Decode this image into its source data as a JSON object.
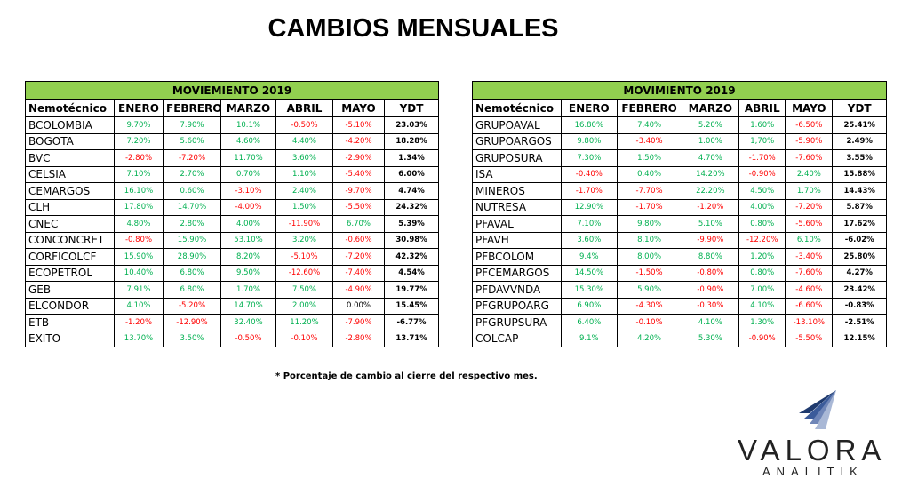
{
  "title": "CAMBIOS MENSUALES",
  "footnote": "* Porcentaje de cambio al cierre del respectivo mes.",
  "logo": {
    "word": "VALORA",
    "sub": "ANALITIK"
  },
  "colors": {
    "header_green": "#92d050",
    "positive": "#00b050",
    "negative": "#ff0000"
  },
  "columns": [
    "Nemotécnico",
    "ENERO",
    "FEBRERO",
    "MARZO",
    "ABRIL",
    "MAYO",
    "YDT"
  ],
  "left_table": {
    "caption": "MOVIEMIENTO 2019",
    "rows": [
      [
        "BCOLOMBIA",
        "9.70%",
        "7.90%",
        "10.1%",
        "-0.50%",
        "-5.10%",
        "23.03%"
      ],
      [
        "BOGOTA",
        "7.20%",
        "5.60%",
        "4.60%",
        "4.40%",
        "-4.20%",
        "18.28%"
      ],
      [
        "BVC",
        "-2.80%",
        "-7.20%",
        "11.70%",
        "3.60%",
        "-2.90%",
        "1.34%"
      ],
      [
        "CELSIA",
        "7.10%",
        "2.70%",
        "0.70%",
        "1.10%",
        "-5.40%",
        "6.00%"
      ],
      [
        "CEMARGOS",
        "16.10%",
        "0.60%",
        "-3.10%",
        "2.40%",
        "-9.70%",
        "4.74%"
      ],
      [
        "CLH",
        "17.80%",
        "14.70%",
        "-4.00%",
        "1.50%",
        "-5.50%",
        "24.32%"
      ],
      [
        "CNEC",
        "4.80%",
        "2.80%",
        "4.00%",
        "-11.90%",
        "6.70%",
        "5.39%"
      ],
      [
        "CONCONCRET",
        "-0.80%",
        "15.90%",
        "53.10%",
        "3.20%",
        "-0.60%",
        "30.98%"
      ],
      [
        "CORFICOLCF",
        "15.90%",
        "28.90%",
        "8.20%",
        "-5.10%",
        "-7.20%",
        "42.32%"
      ],
      [
        "ECOPETROL",
        "10.40%",
        "6.80%",
        "9.50%",
        "-12.60%",
        "-7.40%",
        "4.54%"
      ],
      [
        "GEB",
        "7.91%",
        "6.80%",
        "1.70%",
        "7.50%",
        "-4.90%",
        "19.77%"
      ],
      [
        "ELCONDOR",
        "4.10%",
        "-5.20%",
        "14.70%",
        "2.00%",
        "0.00%",
        "15.45%"
      ],
      [
        "ETB",
        "-1.20%",
        "-12.90%",
        "32.40%",
        "11.20%",
        "-7.90%",
        "-6.77%"
      ],
      [
        "EXITO",
        "13.70%",
        "3.50%",
        "-0.50%",
        "-0.10%",
        "-2.80%",
        "13.71%"
      ]
    ]
  },
  "right_table": {
    "caption": "MOVIMIENTO  2019",
    "rows": [
      [
        "GRUPOAVAL",
        "16.80%",
        "7.40%",
        "5.20%",
        "1.60%",
        "-6.50%",
        "25.41%"
      ],
      [
        "GRUPOARGOS",
        "9.80%",
        "-3.40%",
        "1.00%",
        "1,70%",
        "-5.90%",
        "2.49%"
      ],
      [
        "GRUPOSURA",
        "7.30%",
        "1.50%",
        "4.70%",
        "-1.70%",
        "-7.60%",
        "3.55%"
      ],
      [
        "ISA",
        "-0.40%",
        "0.40%",
        "14.20%",
        "-0.90%",
        "2.40%",
        "15.88%"
      ],
      [
        "MINEROS",
        "-1.70%",
        "-7.70%",
        "22.20%",
        "4.50%",
        "1.70%",
        "14.43%"
      ],
      [
        "NUTRESA",
        "12.90%",
        "-1.70%",
        "-1.20%",
        "4.00%",
        "-7.20%",
        "5.87%"
      ],
      [
        "PFAVAL",
        "7.10%",
        "9.80%",
        "5.10%",
        "0.80%",
        "-5.60%",
        "17.62%"
      ],
      [
        "PFAVH",
        "3.60%",
        "8.10%",
        "-9.90%",
        "-12.20%",
        "6.10%",
        "-6.02%"
      ],
      [
        "PFBCOLOM",
        "9.4%",
        "8.00%",
        "8.80%",
        "1.20%",
        "-3.40%",
        "25.80%"
      ],
      [
        "PFCEMARGOS",
        "14.50%",
        "-1.50%",
        "-0.80%",
        "0.80%",
        "-7.60%",
        "4.27%"
      ],
      [
        "PFDAVVNDA",
        "15.30%",
        "5.90%",
        "-0.90%",
        "7.00%",
        "-4.60%",
        "23.42%"
      ],
      [
        "PFGRUPOARG",
        "6.90%",
        "-4.30%",
        "-0.30%",
        "4.10%",
        "-6.60%",
        "-0.83%"
      ],
      [
        "PFGRUPSURA",
        "6.40%",
        "-0.10%",
        "4.10%",
        "1.30%",
        "-13.10%",
        "-2.51%"
      ],
      [
        "COLCAP",
        "9.1%",
        "4.20%",
        "5.30%",
        "-0.90%",
        "-5.50%",
        "12.15%"
      ]
    ]
  }
}
